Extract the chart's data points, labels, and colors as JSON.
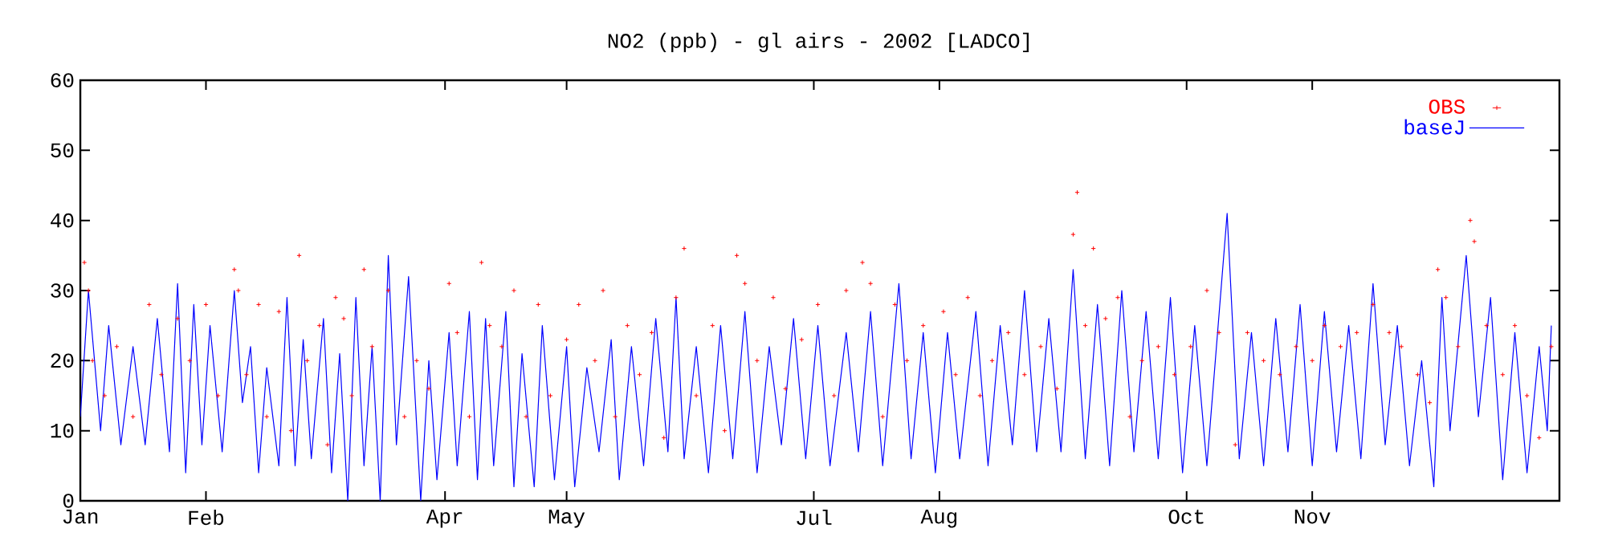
{
  "chart_data": {
    "type": "line",
    "title": "NO2 (ppb) - gl airs - 2002 [LADCO]",
    "xlim": [
      "2002-01-01",
      "2003-01-01"
    ],
    "xticks": [
      {
        "value": "2002-01-01",
        "label": "Jan"
      },
      {
        "value": "2002-02-01",
        "label": "Feb"
      },
      {
        "value": "2002-04-01",
        "label": "Apr"
      },
      {
        "value": "2002-05-01",
        "label": "May"
      },
      {
        "value": "2002-07-01",
        "label": "Jul"
      },
      {
        "value": "2002-08-01",
        "label": "Aug"
      },
      {
        "value": "2002-10-01",
        "label": "Oct"
      },
      {
        "value": "2002-11-01",
        "label": "Nov"
      }
    ],
    "ylim": [
      0,
      60
    ],
    "yticks": [
      0,
      10,
      20,
      30,
      40,
      50,
      60
    ],
    "grid": false,
    "legend": "top right",
    "series": [
      {
        "name": "OBS",
        "type": "scatter",
        "marker": "cross",
        "color": "#ff0000",
        "x": [
          "2002-01-02",
          "2002-01-03",
          "2002-01-04",
          "2002-01-07",
          "2002-01-10",
          "2002-01-14",
          "2002-01-18",
          "2002-01-21",
          "2002-01-25",
          "2002-01-28",
          "2002-02-01",
          "2002-02-04",
          "2002-02-08",
          "2002-02-09",
          "2002-02-11",
          "2002-02-14",
          "2002-02-16",
          "2002-02-19",
          "2002-02-22",
          "2002-02-24",
          "2002-02-26",
          "2002-03-01",
          "2002-03-03",
          "2002-03-05",
          "2002-03-07",
          "2002-03-09",
          "2002-03-12",
          "2002-03-14",
          "2002-03-18",
          "2002-03-22",
          "2002-03-25",
          "2002-03-28",
          "2002-04-02",
          "2002-04-04",
          "2002-04-07",
          "2002-04-10",
          "2002-04-12",
          "2002-04-15",
          "2002-04-18",
          "2002-04-21",
          "2002-04-24",
          "2002-04-27",
          "2002-05-01",
          "2002-05-04",
          "2002-05-08",
          "2002-05-10",
          "2002-05-13",
          "2002-05-16",
          "2002-05-19",
          "2002-05-22",
          "2002-05-25",
          "2002-05-28",
          "2002-05-30",
          "2002-06-02",
          "2002-06-06",
          "2002-06-09",
          "2002-06-12",
          "2002-06-14",
          "2002-06-17",
          "2002-06-21",
          "2002-06-24",
          "2002-06-28",
          "2002-07-02",
          "2002-07-06",
          "2002-07-09",
          "2002-07-13",
          "2002-07-15",
          "2002-07-18",
          "2002-07-21",
          "2002-07-24",
          "2002-07-28",
          "2002-08-02",
          "2002-08-05",
          "2002-08-08",
          "2002-08-11",
          "2002-08-14",
          "2002-08-18",
          "2002-08-22",
          "2002-08-26",
          "2002-08-30",
          "2002-09-03",
          "2002-09-04",
          "2002-09-06",
          "2002-09-08",
          "2002-09-11",
          "2002-09-14",
          "2002-09-17",
          "2002-09-20",
          "2002-09-24",
          "2002-09-28",
          "2002-10-02",
          "2002-10-06",
          "2002-10-09",
          "2002-10-13",
          "2002-10-16",
          "2002-10-20",
          "2002-10-24",
          "2002-10-28",
          "2002-11-01",
          "2002-11-04",
          "2002-11-08",
          "2002-11-12",
          "2002-11-16",
          "2002-11-20",
          "2002-11-23",
          "2002-11-27",
          "2002-11-30",
          "2002-12-02",
          "2002-12-04",
          "2002-12-07",
          "2002-12-10",
          "2002-12-11",
          "2002-12-14",
          "2002-12-18",
          "2002-12-21",
          "2002-12-24",
          "2002-12-27",
          "2002-12-30"
        ],
        "values": [
          34,
          30,
          20,
          15,
          22,
          12,
          28,
          18,
          26,
          20,
          28,
          15,
          33,
          30,
          18,
          28,
          12,
          27,
          10,
          35,
          20,
          25,
          8,
          29,
          26,
          15,
          33,
          22,
          30,
          12,
          20,
          16,
          31,
          24,
          12,
          34,
          25,
          22,
          30,
          12,
          28,
          15,
          23,
          28,
          20,
          30,
          12,
          25,
          18,
          24,
          9,
          29,
          36,
          15,
          25,
          10,
          35,
          31,
          20,
          29,
          16,
          23,
          28,
          15,
          30,
          34,
          31,
          12,
          28,
          20,
          25,
          27,
          18,
          29,
          15,
          20,
          24,
          18,
          22,
          16,
          38,
          44,
          25,
          36,
          26,
          29,
          12,
          20,
          22,
          18,
          22,
          30,
          24,
          8,
          24,
          20,
          18,
          22,
          20,
          25,
          22,
          24,
          28,
          24,
          22,
          18,
          14,
          33,
          29,
          22,
          40,
          37,
          25,
          18,
          25,
          15,
          9,
          22
        ]
      },
      {
        "name": "baseJ",
        "marker": "none",
        "line_style": "solid",
        "color": "#0000ff",
        "x": [
          "2002-01-01",
          "2002-01-03",
          "2002-01-06",
          "2002-01-08",
          "2002-01-11",
          "2002-01-14",
          "2002-01-17",
          "2002-01-20",
          "2002-01-23",
          "2002-01-25",
          "2002-01-27",
          "2002-01-29",
          "2002-01-31",
          "2002-02-02",
          "2002-02-05",
          "2002-02-08",
          "2002-02-10",
          "2002-02-12",
          "2002-02-14",
          "2002-02-16",
          "2002-02-19",
          "2002-02-21",
          "2002-02-23",
          "2002-02-25",
          "2002-02-27",
          "2002-03-02",
          "2002-03-04",
          "2002-03-06",
          "2002-03-08",
          "2002-03-10",
          "2002-03-12",
          "2002-03-14",
          "2002-03-16",
          "2002-03-18",
          "2002-03-20",
          "2002-03-23",
          "2002-03-26",
          "2002-03-28",
          "2002-03-30",
          "2002-04-02",
          "2002-04-04",
          "2002-04-07",
          "2002-04-09",
          "2002-04-11",
          "2002-04-13",
          "2002-04-16",
          "2002-04-18",
          "2002-04-20",
          "2002-04-23",
          "2002-04-25",
          "2002-04-28",
          "2002-05-01",
          "2002-05-03",
          "2002-05-06",
          "2002-05-09",
          "2002-05-12",
          "2002-05-14",
          "2002-05-17",
          "2002-05-20",
          "2002-05-23",
          "2002-05-26",
          "2002-05-28",
          "2002-05-30",
          "2002-06-02",
          "2002-06-05",
          "2002-06-08",
          "2002-06-11",
          "2002-06-14",
          "2002-06-17",
          "2002-06-20",
          "2002-06-23",
          "2002-06-26",
          "2002-06-29",
          "2002-07-02",
          "2002-07-05",
          "2002-07-09",
          "2002-07-12",
          "2002-07-15",
          "2002-07-18",
          "2002-07-22",
          "2002-07-25",
          "2002-07-28",
          "2002-07-31",
          "2002-08-03",
          "2002-08-06",
          "2002-08-10",
          "2002-08-13",
          "2002-08-16",
          "2002-08-19",
          "2002-08-22",
          "2002-08-25",
          "2002-08-28",
          "2002-08-31",
          "2002-09-03",
          "2002-09-06",
          "2002-09-09",
          "2002-09-12",
          "2002-09-15",
          "2002-09-18",
          "2002-09-21",
          "2002-09-24",
          "2002-09-27",
          "2002-09-30",
          "2002-10-03",
          "2002-10-06",
          "2002-10-11",
          "2002-10-14",
          "2002-10-17",
          "2002-10-20",
          "2002-10-23",
          "2002-10-26",
          "2002-10-29",
          "2002-11-01",
          "2002-11-04",
          "2002-11-07",
          "2002-11-10",
          "2002-11-13",
          "2002-11-16",
          "2002-11-19",
          "2002-11-22",
          "2002-11-25",
          "2002-11-28",
          "2002-12-01",
          "2002-12-03",
          "2002-12-05",
          "2002-12-09",
          "2002-12-12",
          "2002-12-15",
          "2002-12-18",
          "2002-12-21",
          "2002-12-24",
          "2002-12-27",
          "2002-12-29",
          "2002-12-30"
        ],
        "values": [
          12,
          30,
          10,
          25,
          8,
          22,
          8,
          26,
          7,
          31,
          4,
          28,
          8,
          25,
          7,
          30,
          14,
          22,
          4,
          19,
          5,
          29,
          5,
          23,
          6,
          26,
          4,
          21,
          0,
          29,
          5,
          22,
          0,
          35,
          8,
          32,
          0,
          20,
          3,
          24,
          5,
          27,
          3,
          26,
          5,
          27,
          2,
          21,
          2,
          25,
          3,
          22,
          2,
          19,
          7,
          23,
          3,
          22,
          5,
          26,
          7,
          29,
          6,
          22,
          4,
          25,
          6,
          27,
          4,
          22,
          8,
          26,
          6,
          25,
          5,
          24,
          7,
          27,
          5,
          31,
          6,
          24,
          4,
          24,
          6,
          27,
          5,
          25,
          8,
          30,
          7,
          26,
          7,
          33,
          6,
          28,
          5,
          30,
          7,
          27,
          6,
          29,
          4,
          25,
          5,
          41,
          6,
          24,
          5,
          26,
          7,
          28,
          5,
          27,
          7,
          25,
          6,
          31,
          8,
          25,
          5,
          20,
          2,
          29,
          10,
          35,
          12,
          29,
          3,
          24,
          4,
          22,
          10,
          25
        ]
      }
    ]
  }
}
